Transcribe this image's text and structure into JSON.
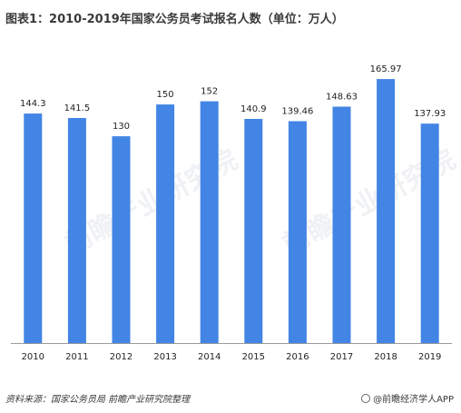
{
  "title": "图表1：2010-2019年国家公务员考试报名人数（单位：万人）",
  "footer": {
    "source": "资料来源：国家公务员局  前瞻产业研究院整理",
    "brand": "@前瞻经济学人APP"
  },
  "watermark_text": "前瞻产业研究院",
  "colors": {
    "bar": "#4285e4",
    "axis": "#9a9a9a",
    "label": "#222222"
  },
  "chart_data": {
    "type": "bar",
    "title": "图表1：2010-2019年国家公务员考试报名人数（单位：万人）",
    "xlabel": "",
    "ylabel": "",
    "ylim": [
      0,
      170
    ],
    "grid": false,
    "categories": [
      "2010",
      "2011",
      "2012",
      "2013",
      "2014",
      "2015",
      "2016",
      "2017",
      "2018",
      "2019"
    ],
    "values": [
      144.3,
      141.5,
      130,
      150,
      152,
      140.9,
      139.46,
      148.63,
      165.97,
      137.93
    ],
    "value_labels": [
      "144.3",
      "141.5",
      "130",
      "150",
      "152",
      "140.9",
      "139.46",
      "148.63",
      "165.97",
      "137.93"
    ]
  }
}
